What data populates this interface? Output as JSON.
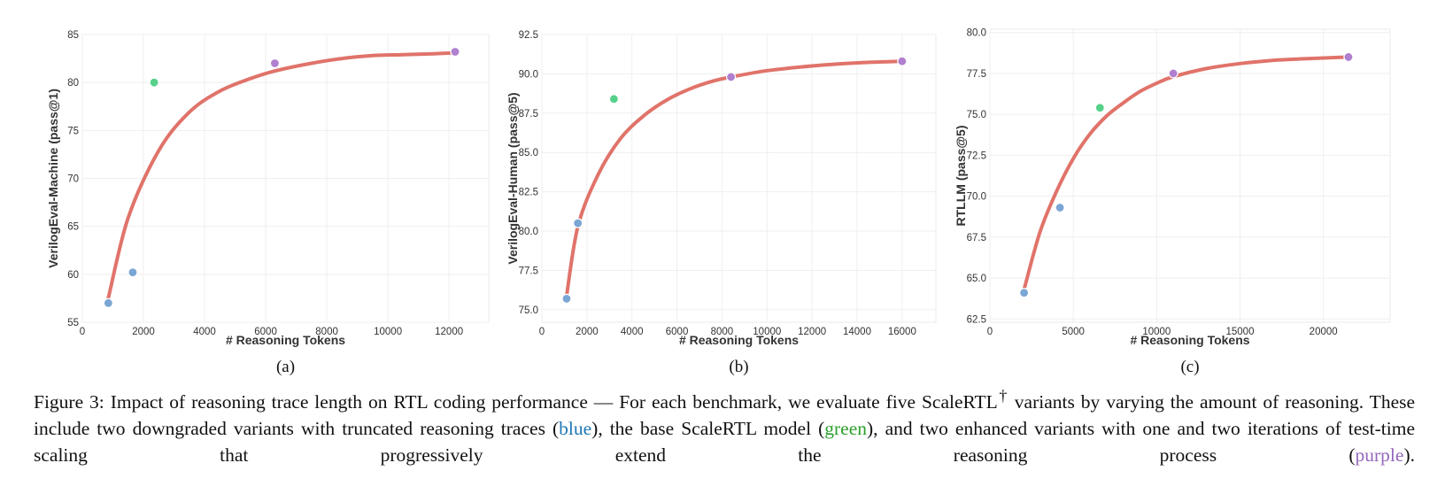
{
  "chart_data": [
    {
      "type": "scatter",
      "panel_label": "(a)",
      "xlabel": "# Reasoning Tokens",
      "ylabel": "VerilogEval-Machine (pass@1)",
      "xlim": [
        0,
        13300
      ],
      "ylim": [
        55,
        85
      ],
      "xticks": [
        0,
        2000,
        4000,
        6000,
        8000,
        10000,
        12000
      ],
      "yticks": [
        55,
        60,
        65,
        70,
        75,
        80,
        85
      ],
      "ytick_labels": [
        "55",
        "60",
        "65",
        "70",
        "75",
        "80",
        "85"
      ],
      "grid": true,
      "points": [
        {
          "x": 850,
          "y": 57.0,
          "color": "#7aa6d4"
        },
        {
          "x": 1650,
          "y": 60.2,
          "color": "#7aa6d4"
        },
        {
          "x": 2350,
          "y": 80.0,
          "color": "#57d18a"
        },
        {
          "x": 6300,
          "y": 82.0,
          "color": "#b07fcf"
        },
        {
          "x": 12200,
          "y": 83.2,
          "color": "#b07fcf"
        }
      ],
      "fit_curve": {
        "color": "#e0736a",
        "x": [
          850,
          1500,
          2500,
          3500,
          4500,
          5500,
          6300,
          7500,
          8500,
          9500,
          10500,
          11500,
          12200
        ],
        "y": [
          57.5,
          65.9,
          72.9,
          76.9,
          79.1,
          80.4,
          81.2,
          82.0,
          82.5,
          82.8,
          82.9,
          83.0,
          83.1
        ]
      }
    },
    {
      "type": "scatter",
      "panel_label": "(b)",
      "xlabel": "# Reasoning Tokens",
      "ylabel": "VerilogEval-Human (pass@5)",
      "xlim": [
        0,
        17500
      ],
      "ylim": [
        74.2,
        92.5
      ],
      "xticks": [
        0,
        2000,
        4000,
        6000,
        8000,
        10000,
        12000,
        14000,
        16000
      ],
      "yticks": [
        75,
        77.5,
        80,
        82.5,
        85,
        87.5,
        90,
        92.5
      ],
      "ytick_labels": [
        "75.0",
        "77.5",
        "80.0",
        "82.5",
        "85.0",
        "87.5",
        "90.0",
        "92.5"
      ],
      "grid": true,
      "points": [
        {
          "x": 1100,
          "y": 75.7,
          "color": "#7aa6d4"
        },
        {
          "x": 1600,
          "y": 80.5,
          "color": "#7aa6d4"
        },
        {
          "x": 3200,
          "y": 88.4,
          "color": "#57d18a"
        },
        {
          "x": 8400,
          "y": 89.8,
          "color": "#b07fcf"
        },
        {
          "x": 16000,
          "y": 90.8,
          "color": "#b07fcf"
        }
      ],
      "fit_curve": {
        "color": "#e0736a",
        "x": [
          1100,
          1600,
          2500,
          3500,
          4500,
          5500,
          6500,
          7500,
          8400,
          10000,
          12000,
          14000,
          16000
        ],
        "y": [
          75.9,
          80.3,
          83.6,
          85.9,
          87.3,
          88.3,
          89.0,
          89.5,
          89.8,
          90.2,
          90.5,
          90.7,
          90.8
        ]
      }
    },
    {
      "type": "scatter",
      "panel_label": "(c)",
      "xlabel": "# Reasoning Tokens",
      "ylabel": "RTLLM (pass@5)",
      "xlim": [
        0,
        24000
      ],
      "ylim": [
        62.3,
        80.2
      ],
      "xticks": [
        0,
        5000,
        10000,
        15000,
        20000
      ],
      "yticks": [
        62.5,
        65,
        67.5,
        70,
        72.5,
        75,
        77.5,
        80
      ],
      "ytick_labels": [
        "62.5",
        "65.0",
        "67.5",
        "70.0",
        "72.5",
        "75.0",
        "77.5",
        "80.0"
      ],
      "grid": true,
      "points": [
        {
          "x": 2050,
          "y": 64.1,
          "color": "#7aa6d4"
        },
        {
          "x": 4200,
          "y": 69.3,
          "color": "#7aa6d4"
        },
        {
          "x": 6600,
          "y": 75.4,
          "color": "#57d18a"
        },
        {
          "x": 11000,
          "y": 77.5,
          "color": "#b07fcf"
        },
        {
          "x": 21500,
          "y": 78.5,
          "color": "#b07fcf"
        }
      ],
      "fit_curve": {
        "color": "#e0736a",
        "x": [
          2050,
          3000,
          4000,
          5000,
          6000,
          7000,
          8000,
          9000,
          10000,
          11000,
          13000,
          15000,
          17000,
          19000,
          21500
        ],
        "y": [
          64.3,
          67.8,
          70.3,
          72.3,
          73.8,
          74.9,
          75.7,
          76.4,
          76.9,
          77.3,
          77.8,
          78.1,
          78.3,
          78.4,
          78.5
        ]
      }
    }
  ],
  "caption": {
    "prefix": "Figure 3: Impact of reasoning trace length on RTL coding performance — For each benchmark, we evaluate five ScaleRTL",
    "dagger": "†",
    "line1_rest": " variants by",
    "line2": "varying the amount of reasoning. These include two downgraded variants with truncated reasoning traces (",
    "blue_word": "blue",
    "line2_end": "), the base ScaleRTL model",
    "open_paren": "(",
    "green_word": "green",
    "line3": "), and two enhanced variants with one and two iterations of test-time scaling that progressively extend the reasoning process (",
    "purple_word": "purple",
    "line3_end": ")."
  }
}
